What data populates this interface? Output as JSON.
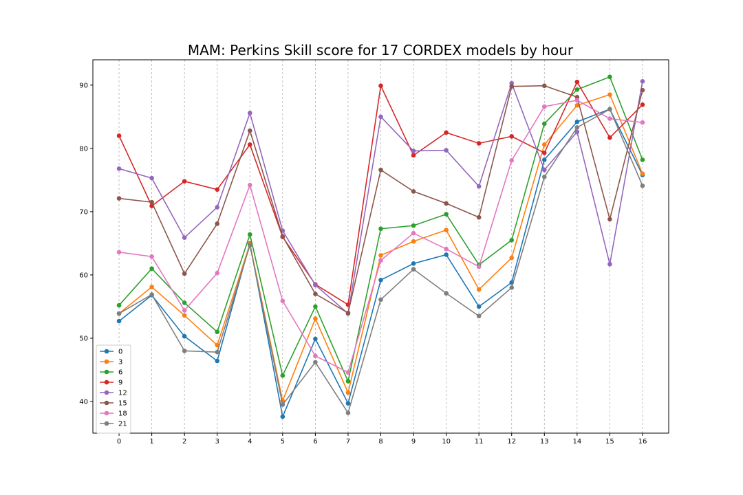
{
  "chart_data": {
    "type": "line",
    "title": "MAM: Perkins Skill score for 17 CORDEX models by hour",
    "xlabel": "",
    "ylabel": "",
    "x": [
      0,
      1,
      2,
      3,
      4,
      5,
      6,
      7,
      8,
      9,
      10,
      11,
      12,
      13,
      14,
      15,
      16
    ],
    "xlim": [
      -0.8,
      16.8
    ],
    "ylim": [
      35,
      94
    ],
    "yticks": [
      40,
      50,
      60,
      70,
      80,
      90
    ],
    "grid": "x-dashed",
    "legend": "lower-left",
    "series": [
      {
        "name": "0",
        "color": "#1f77b4",
        "values": [
          52.7,
          56.8,
          50.3,
          46.4,
          65.0,
          37.6,
          49.9,
          39.7,
          59.2,
          61.8,
          63.2,
          55.0,
          58.8,
          78.2,
          84.2,
          86.2,
          75.8
        ]
      },
      {
        "name": "3",
        "color": "#ff7f0e",
        "values": [
          53.9,
          58.1,
          53.6,
          48.9,
          64.9,
          40.1,
          53.1,
          41.4,
          63.1,
          65.3,
          67.1,
          57.7,
          62.7,
          80.6,
          86.8,
          88.5,
          76.0
        ]
      },
      {
        "name": "6",
        "color": "#2ca02c",
        "values": [
          55.2,
          61.0,
          55.6,
          51.0,
          66.4,
          44.1,
          55.0,
          43.2,
          67.3,
          67.8,
          69.6,
          61.6,
          65.5,
          83.9,
          89.3,
          91.3,
          78.2
        ]
      },
      {
        "name": "9",
        "color": "#d62728",
        "values": [
          82.0,
          70.9,
          74.8,
          73.5,
          80.6,
          66.0,
          58.5,
          55.3,
          89.9,
          78.9,
          82.5,
          80.8,
          81.9,
          79.3,
          90.5,
          81.7,
          86.9
        ]
      },
      {
        "name": "12",
        "color": "#9467bd",
        "values": [
          76.8,
          75.3,
          65.9,
          70.7,
          85.6,
          67.0,
          58.4,
          53.9,
          85.0,
          79.6,
          79.7,
          74.0,
          90.3,
          76.6,
          82.6,
          61.7,
          90.6
        ]
      },
      {
        "name": "15",
        "color": "#8c564b",
        "values": [
          72.1,
          71.5,
          60.2,
          68.1,
          82.8,
          66.1,
          57.0,
          54.0,
          76.6,
          73.2,
          71.3,
          69.1,
          89.8,
          89.9,
          88.1,
          68.8,
          89.2
        ]
      },
      {
        "name": "18",
        "color": "#e377c2",
        "values": [
          63.6,
          62.9,
          54.4,
          60.3,
          74.2,
          55.9,
          47.2,
          44.6,
          62.3,
          66.6,
          64.1,
          61.3,
          78.1,
          86.6,
          87.6,
          84.7,
          84.1
        ]
      },
      {
        "name": "21",
        "color": "#7f7f7f",
        "values": [
          53.9,
          56.9,
          48.0,
          47.8,
          64.7,
          39.5,
          46.2,
          38.2,
          56.1,
          60.9,
          57.1,
          53.5,
          58.0,
          75.5,
          83.3,
          86.2,
          74.1
        ]
      }
    ]
  }
}
